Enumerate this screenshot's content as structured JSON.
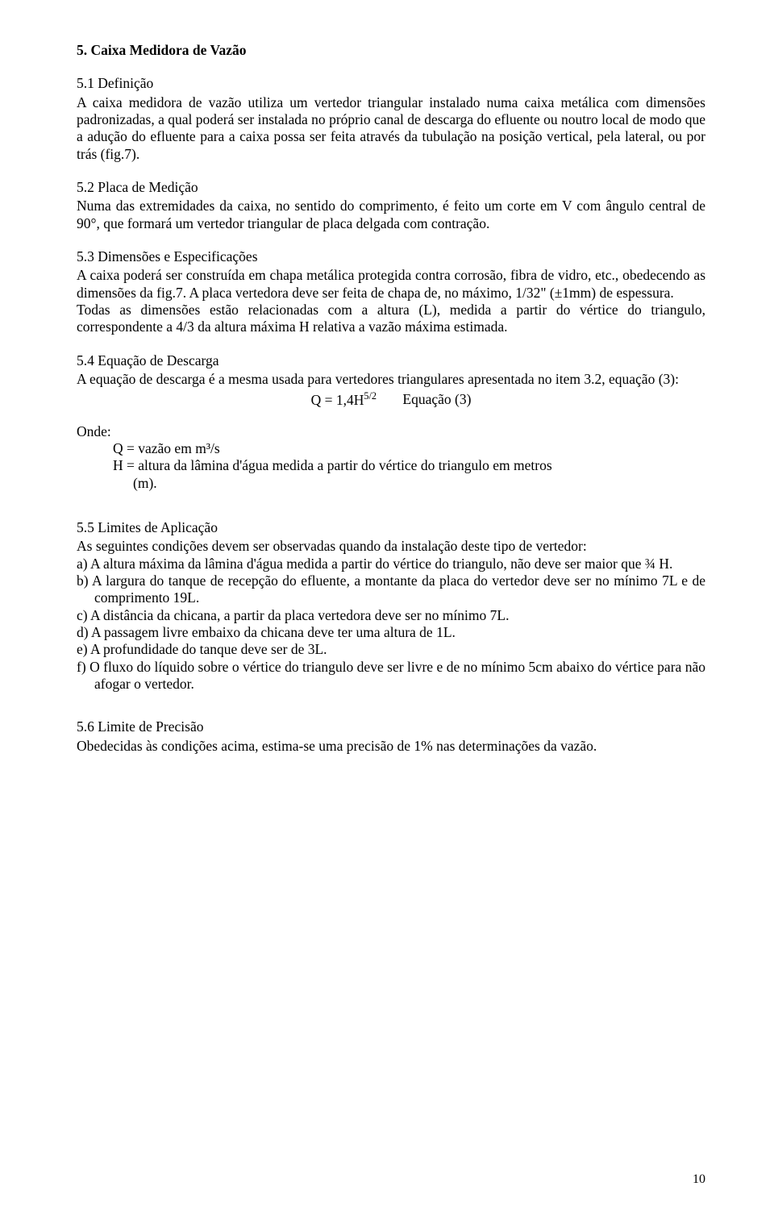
{
  "heading5": "5. Caixa Medidora de Vazão",
  "s51_title": "5.1 Definição",
  "s51_body": "A caixa medidora de vazão utiliza um vertedor triangular instalado numa caixa metálica com dimensões padronizadas, a qual poderá ser instalada no próprio canal de descarga do efluente ou noutro local de modo que a adução do efluente para a caixa possa ser feita através da tubulação na posição vertical, pela lateral, ou por trás (fig.7).",
  "s52_title": "5.2 Placa de Medição",
  "s52_body": "Numa das extremidades da caixa, no sentido do comprimento, é feito um corte em V com ângulo central de 90°, que formará um vertedor triangular de placa delgada com contração.",
  "s53_title": "5.3  Dimensões e Especificações",
  "s53_body1": "A caixa poderá ser construída em chapa metálica protegida contra corrosão, fibra de vidro, etc., obedecendo as dimensões da fig.7. A placa vertedora deve ser feita de chapa de, no máximo, 1/32\" (±1mm) de espessura.",
  "s53_body2": "Todas as dimensões estão relacionadas com a altura (L), medida a partir do vértice do triangulo, correspondente a 4/3  da altura máxima H relativa a vazão máxima estimada.",
  "s54_title": "5.4  Equação de Descarga",
  "s54_body": "A equação de descarga é a mesma usada para vertedores triangulares apresentada no item 3.2, equação (3):",
  "equation_q": "Q = 1,4H",
  "equation_exp": "5/2",
  "equation_label": "Equação (3)",
  "onde": "Onde:",
  "onde_q": "Q = vazão em m³/s",
  "onde_h": "H = altura da lâmina d'água medida a partir do vértice do triangulo em metros",
  "onde_h2": "(m).",
  "s55_title": "5.5  Limites de Aplicação",
  "s55_intro": "As seguintes condições devem ser observadas quando da instalação deste tipo de vertedor:",
  "items": {
    "a": "a)  A altura máxima da lâmina d'água medida a partir do vértice do triangulo, não deve ser maior que ¾ H.",
    "b": "b)  A largura do tanque de recepção do efluente, a montante da placa do vertedor deve ser no mínimo 7L e de comprimento 19L.",
    "c": "c)  A distância da chicana, a partir da placa vertedora deve ser no mínimo 7L.",
    "d": "d)  A passagem livre embaixo da chicana deve ter uma altura de 1L.",
    "e": "e)  A profundidade do tanque deve ser de 3L.",
    "f": "f)  O fluxo do líquido sobre o vértice do triangulo deve ser livre e de no mínimo 5cm abaixo do vértice para não afogar o vertedor."
  },
  "s56_title": "5.6  Limite de Precisão",
  "s56_body": "Obedecidas às condições acima, estima-se uma precisão de 1% nas determinações da vazão.",
  "page_number": "10"
}
